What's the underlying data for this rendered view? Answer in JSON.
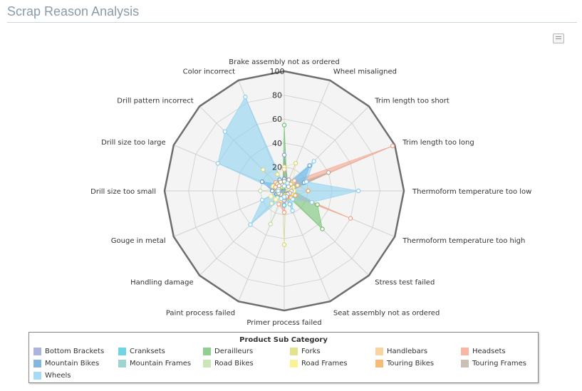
{
  "page": {
    "title": "Scrap Reason Analysis"
  },
  "export": {
    "icon": "export-menu-icon"
  },
  "chart_data": {
    "type": "radar",
    "title": "",
    "rlim": [
      0,
      100
    ],
    "r_ticks": [
      "20",
      "40",
      "60",
      "80",
      "100"
    ],
    "grid": true,
    "legend_placement": "bottom",
    "legend_title": "Product Sub Category",
    "categories": [
      "Brake assembly not as ordered",
      "Wheel misaligned",
      "Trim length too short",
      "Trim length too long",
      "Thermoform temperature too low",
      "Thermoform temperature too high",
      "Stress test failed",
      "Seat assembly not as ordered",
      "Primer process failed",
      "Paint process failed",
      "Handling damage",
      "Gouge in metal",
      "Drill size too small",
      "Drill size too large",
      "Drill pattern incorrect",
      "Color incorrect"
    ],
    "series": [
      {
        "name": "Bottom Brackets",
        "color": "#8e9bd3",
        "values": [
          30,
          8,
          8,
          6,
          2,
          5,
          6,
          5,
          8,
          7,
          5,
          5,
          4,
          6,
          3,
          4
        ],
        "filled": true
      },
      {
        "name": "Cranksets",
        "color": "#3fc7dc",
        "values": [
          5,
          4,
          3,
          4,
          4,
          5,
          6,
          5,
          12,
          6,
          5,
          6,
          6,
          5,
          4,
          3
        ],
        "filled": false
      },
      {
        "name": "Derailleurs",
        "color": "#6abf6a",
        "values": [
          55,
          6,
          8,
          5,
          8,
          30,
          45,
          3,
          5,
          6,
          4,
          6,
          5,
          4,
          6,
          3
        ],
        "filled": true
      },
      {
        "name": "Forks",
        "color": "#d8d86a",
        "values": [
          20,
          25,
          10,
          8,
          6,
          5,
          4,
          4,
          45,
          5,
          6,
          5,
          7,
          10,
          25,
          15
        ],
        "filled": false
      },
      {
        "name": "Handlebars",
        "color": "#f7c67e",
        "values": [
          18,
          6,
          8,
          5,
          6,
          4,
          10,
          5,
          5,
          5,
          4,
          6,
          10,
          6,
          5,
          4
        ],
        "filled": false
      },
      {
        "name": "Headsets",
        "color": "#f59e86",
        "values": [
          8,
          6,
          12,
          98,
          3,
          60,
          4,
          5,
          18,
          12,
          5,
          5,
          6,
          7,
          10,
          5
        ],
        "filled": true
      },
      {
        "name": "Mountain Bikes",
        "color": "#5b9bd5",
        "values": [
          10,
          5,
          30,
          18,
          6,
          4,
          5,
          4,
          5,
          6,
          5,
          7,
          10,
          20,
          8,
          10
        ],
        "filled": true
      },
      {
        "name": "Mountain Frames",
        "color": "#7cc6c0",
        "values": [
          8,
          5,
          4,
          5,
          6,
          5,
          4,
          12,
          6,
          5,
          8,
          6,
          5,
          8,
          5,
          6
        ],
        "filled": false
      },
      {
        "name": "Road Bikes",
        "color": "#b9dca0",
        "values": [
          6,
          5,
          4,
          6,
          5,
          7,
          6,
          5,
          4,
          30,
          15,
          5,
          20,
          5,
          8,
          6
        ],
        "filled": false
      },
      {
        "name": "Road Frames",
        "color": "#fbec70",
        "values": [
          5,
          6,
          4,
          5,
          8,
          6,
          5,
          4,
          6,
          8,
          10,
          12,
          6,
          10,
          5,
          8
        ],
        "filled": false
      },
      {
        "name": "Touring Bikes",
        "color": "#f5a44a",
        "values": [
          6,
          10,
          8,
          12,
          20,
          10,
          8,
          6,
          5,
          6,
          4,
          5,
          6,
          8,
          8,
          6
        ],
        "filled": false
      },
      {
        "name": "Touring Frames",
        "color": "#b9a99a",
        "values": [
          8,
          10,
          5,
          40,
          6,
          5,
          4,
          5,
          6,
          5,
          4,
          5,
          6,
          5,
          6,
          8
        ],
        "filled": true
      },
      {
        "name": "Wheels",
        "color": "#86cff2",
        "values": [
          4,
          7,
          35,
          20,
          62,
          25,
          10,
          18,
          5,
          7,
          40,
          20,
          5,
          60,
          70,
          85
        ],
        "filled": true
      }
    ]
  }
}
